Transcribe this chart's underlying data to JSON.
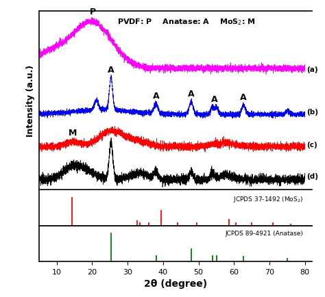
{
  "title_text": "PVDF: P    Anatase: A    MoS$_2$: M",
  "xlabel": "2θ (degree)",
  "ylabel": "Intensity (a.u.)",
  "xmin": 5,
  "xmax": 80,
  "curve_colors": [
    "#FF00FF",
    "#0000EE",
    "#FF0000",
    "#000000"
  ],
  "jcpds_mos2_label": "JCPDS 37-1492 (MoS$_2$)",
  "jcpds_anatase_label": "JCPDS 89-4921 (Anatase)",
  "mos2_peaks": [
    14.4,
    32.7,
    33.5,
    36.0,
    39.5,
    44.0,
    49.5,
    58.5,
    60.5,
    65.0,
    71.0,
    76.0
  ],
  "mos2_heights": [
    1.0,
    0.18,
    0.12,
    0.12,
    0.55,
    0.1,
    0.1,
    0.22,
    0.12,
    0.1,
    0.1,
    0.06
  ],
  "anatase_peaks": [
    25.3,
    38.0,
    47.9,
    53.9,
    55.1,
    62.7,
    75.1
  ],
  "anatase_heights": [
    1.0,
    0.22,
    0.45,
    0.22,
    0.22,
    0.18,
    0.12
  ],
  "background_color": "#ffffff"
}
